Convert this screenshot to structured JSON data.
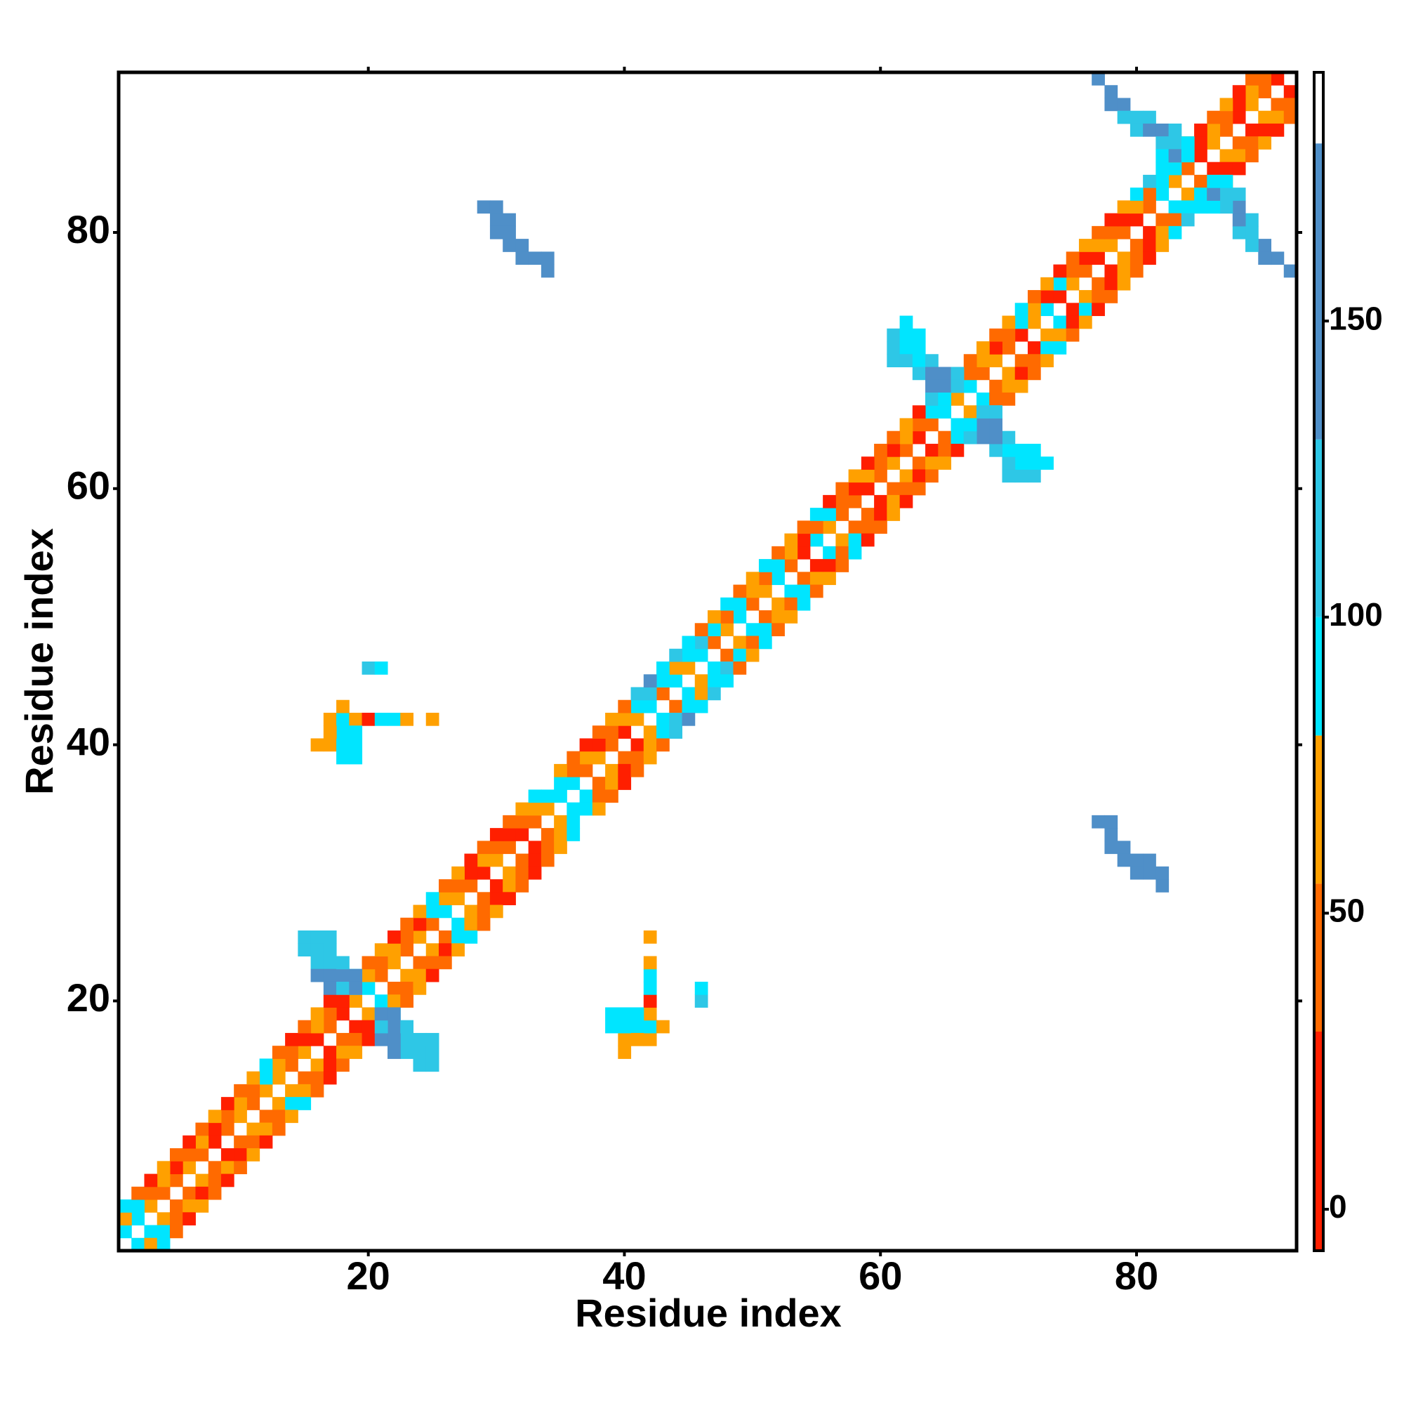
{
  "chart_data": {
    "type": "heatmap",
    "x_label": "Residue index",
    "y_label": "Residue index",
    "xlim": [
      0.5,
      92.5
    ],
    "ylim": [
      0.5,
      92.5
    ],
    "xticks": [
      20,
      40,
      60,
      80
    ],
    "yticks": [
      20,
      40,
      60,
      80
    ],
    "symmetric": true,
    "clim": [
      -7,
      192
    ],
    "cticks": [
      0,
      50,
      100,
      150
    ],
    "colorscale": [
      {
        "max": 30,
        "color": "#ff1f00"
      },
      {
        "max": 55,
        "color": "#ff6a00"
      },
      {
        "max": 80,
        "color": "#ffa000"
      },
      {
        "max": 100,
        "color": "#00e5ff"
      },
      {
        "max": 130,
        "color": "#2ec7e6"
      },
      {
        "max": 180,
        "color": "#4f8fc8"
      },
      {
        "max": 192,
        "color": "#ffffff"
      }
    ],
    "bands": [
      {
        "offset": 1,
        "values": [
          90,
          90,
          65,
          40,
          40,
          65,
          40,
          20,
          40,
          65,
          40,
          65,
          65,
          40,
          65,
          20,
          40,
          20,
          65,
          90,
          40,
          65,
          40,
          65,
          40,
          90,
          65,
          40,
          20,
          65,
          40,
          20,
          40,
          65,
          90,
          90,
          40,
          65,
          40,
          20,
          65,
          90,
          40,
          90,
          65,
          90,
          40,
          65,
          90,
          40,
          65,
          90,
          40,
          20,
          90,
          65,
          40,
          40,
          20,
          40,
          65,
          40,
          20,
          40,
          90,
          65,
          90,
          40,
          65,
          40,
          20,
          65,
          90,
          20,
          65,
          40,
          20,
          65,
          40,
          20,
          40,
          90,
          65,
          40,
          20,
          65,
          40,
          20,
          65,
          40,
          20
        ]
      },
      {
        "offset": 2,
        "values": [
          65,
          90,
          40,
          65,
          20,
          40,
          65,
          20,
          40,
          65,
          40,
          90,
          65,
          40,
          20,
          65,
          40,
          20,
          90,
          65,
          40,
          65,
          40,
          20,
          90,
          65,
          40,
          20,
          65,
          40,
          20,
          40,
          65,
          90,
          90,
          40,
          65,
          20,
          40,
          65,
          90,
          115,
          90,
          65,
          90,
          115,
          90,
          40,
          90,
          65,
          40,
          90,
          65,
          20,
          40,
          90,
          40,
          20,
          65,
          40,
          20,
          65,
          40,
          90,
          115,
          90,
          40,
          65,
          20,
          40,
          90,
          65,
          20,
          90,
          40,
          20,
          65,
          40,
          20,
          65,
          40,
          90,
          90,
          40,
          20,
          65,
          40,
          20,
          65,
          40
        ]
      },
      {
        "offset": 3,
        "values": [
          90,
          40,
          20,
          65,
          40,
          20,
          40,
          65,
          20,
          40,
          65,
          90,
          40,
          20,
          40,
          65,
          20,
          40,
          90,
          40,
          65,
          20,
          40,
          65,
          90,
          40,
          65,
          20,
          40,
          20,
          40,
          65,
          90,
          null,
          65,
          40,
          20,
          40,
          65,
          40,
          115,
          150,
          90,
          115,
          90,
          40,
          65,
          90,
          40,
          65,
          90,
          40,
          65,
          40,
          90,
          20,
          40,
          65,
          20,
          40,
          40,
          65,
          20,
          115,
          150,
          90,
          40,
          65,
          40,
          65,
          90,
          40,
          65,
          20,
          40,
          65,
          40,
          20,
          65,
          90,
          115,
          90,
          40,
          65,
          20,
          40,
          65,
          20,
          40
        ]
      }
    ],
    "cells": {
      "x": [
        29,
        30,
        30,
        31,
        31,
        32,
        31,
        32,
        33,
        34,
        34,
        30,
        15,
        16,
        17,
        15,
        16,
        16,
        17,
        17,
        16,
        17,
        18,
        18,
        17,
        18,
        19,
        19,
        17,
        18,
        19,
        20,
        21,
        22,
        23,
        25,
        18,
        16,
        17,
        18,
        19,
        18,
        19,
        18,
        19,
        17,
        20,
        21,
        62,
        61,
        62,
        63,
        61,
        62,
        63,
        61,
        62,
        63,
        64,
        63,
        64,
        65,
        66,
        64,
        65,
        66,
        64,
        65,
        77,
        78,
        78,
        79,
        79,
        80,
        81,
        80,
        81,
        82,
        83,
        82,
        83,
        84,
        82,
        83,
        84
      ],
      "y": [
        82,
        82,
        81,
        81,
        80,
        79,
        79,
        78,
        78,
        77,
        78,
        80,
        24,
        24,
        25,
        25,
        25,
        23,
        23,
        24,
        22,
        22,
        22,
        23,
        21,
        21,
        22,
        21,
        42,
        42,
        42,
        42,
        42,
        42,
        42,
        42,
        43,
        40,
        40,
        40,
        40,
        39,
        39,
        41,
        41,
        41,
        46,
        46,
        73,
        72,
        72,
        72,
        71,
        71,
        71,
        70,
        70,
        70,
        70,
        69,
        69,
        69,
        69,
        68,
        68,
        68,
        67,
        67,
        92,
        91,
        90,
        90,
        89,
        89,
        89,
        88,
        88,
        88,
        88,
        87,
        87,
        87,
        86,
        86,
        86
      ],
      "values": [
        150,
        150,
        150,
        150,
        150,
        150,
        150,
        150,
        150,
        150,
        150,
        150,
        115,
        115,
        115,
        115,
        115,
        115,
        115,
        115,
        150,
        150,
        150,
        115,
        150,
        115,
        150,
        150,
        65,
        90,
        65,
        20,
        90,
        90,
        65,
        65,
        65,
        65,
        65,
        90,
        90,
        90,
        90,
        90,
        90,
        65,
        115,
        90,
        90,
        115,
        90,
        90,
        115,
        90,
        90,
        115,
        115,
        90,
        115,
        115,
        150,
        150,
        115,
        150,
        150,
        115,
        115,
        90,
        150,
        150,
        150,
        150,
        115,
        115,
        115,
        115,
        150,
        150,
        115,
        115,
        115,
        90,
        90,
        150,
        90
      ]
    }
  }
}
